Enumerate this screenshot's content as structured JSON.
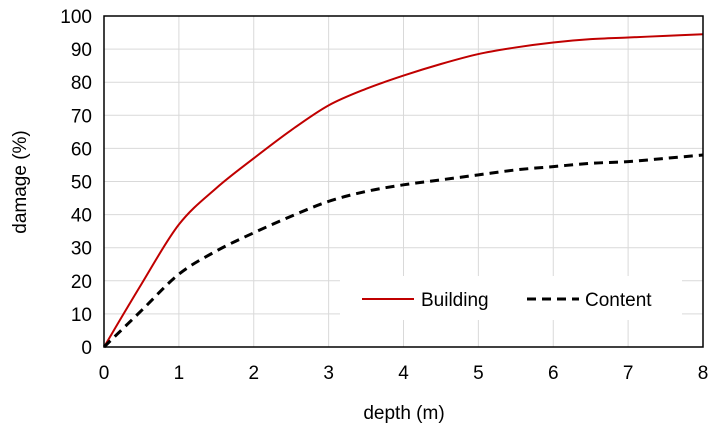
{
  "chart_data": {
    "type": "line",
    "title": "",
    "xlabel": "depth (m)",
    "ylabel": "damage (%)",
    "xlim": [
      0,
      8
    ],
    "ylim": [
      0,
      100
    ],
    "x_ticks": [
      "0",
      "1",
      "2",
      "3",
      "4",
      "5",
      "6",
      "7",
      "8"
    ],
    "y_ticks": [
      "0",
      "10",
      "20",
      "30",
      "40",
      "50",
      "60",
      "70",
      "80",
      "90",
      "100"
    ],
    "grid": true,
    "legend_position": "bottom-right",
    "series": [
      {
        "name": "Building",
        "color": "#c00000",
        "style": "solid",
        "x": [
          0,
          0.5,
          1,
          1.5,
          2,
          2.5,
          3,
          3.5,
          4,
          4.5,
          5,
          5.5,
          6,
          6.5,
          7,
          7.5,
          8
        ],
        "y": [
          0,
          19,
          37,
          48,
          57,
          65.5,
          73,
          78,
          82,
          85.5,
          88.5,
          90.5,
          92,
          93,
          93.5,
          94,
          94.5
        ]
      },
      {
        "name": "Content",
        "color": "#000000",
        "style": "dashed",
        "x": [
          0,
          0.5,
          1,
          1.5,
          2,
          2.5,
          3,
          3.5,
          4,
          4.5,
          5,
          5.5,
          6,
          6.5,
          7,
          7.5,
          8
        ],
        "y": [
          0,
          11,
          22,
          29,
          34.5,
          39.5,
          44,
          47,
          49,
          50.5,
          52,
          53.5,
          54.5,
          55.5,
          56,
          57,
          58
        ]
      }
    ]
  }
}
